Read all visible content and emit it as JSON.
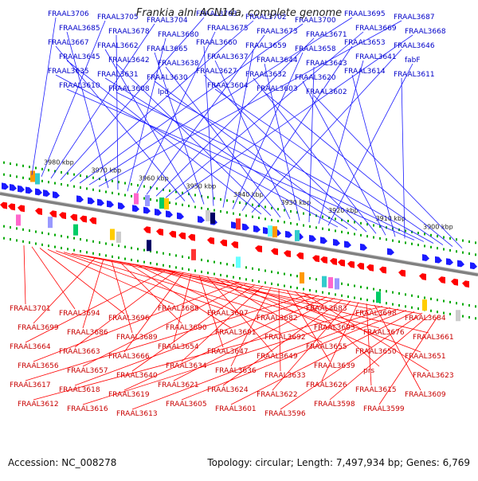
{
  "title": "Frankia alni ACN14a, complete genome",
  "footer": {
    "accession": "Accession: NC_008278",
    "summary": "Topology: circular; Length: 7,497,934 bp; Genes: 6,769"
  },
  "colors": {
    "forward": "#1a1aff",
    "reverse": "#ff0000",
    "backbone": "#808080",
    "tick": "#00aa00",
    "forward_label": "#0000c8",
    "reverse_label": "#c80000"
  },
  "scale_ticks": [
    "3980 kbp",
    "3970 kbp",
    "3960 kbp",
    "3950 kbp",
    "3940 kbp",
    "3930 kbp",
    "3920 kbp",
    "3910 kbp",
    "3900 kbp"
  ],
  "forward_labels": [
    "FRAAL3706",
    "FRAAL3705",
    "FRAAL3704",
    "FRAAL3703",
    "FRAAL3702",
    "FRAAL3700",
    "FRAAL3695",
    "FRAAL3687",
    "FRAAL3685",
    "FRAAL3678",
    "FRAAL3680",
    "FRAAL3675",
    "FRAAL3673",
    "FRAAL3671",
    "FRAAL3669",
    "FRAAL3668",
    "FRAAL3667",
    "FRAAL3662",
    "FRAAL3665",
    "FRAAL3660",
    "FRAAL3659",
    "FRAAL3658",
    "FRAAL3653",
    "FRAAL3646",
    "FRAAL3645",
    "FRAAL3642",
    "FRAAL3638",
    "FRAAL3637",
    "FRAAL3644",
    "FRAAL3643",
    "FRAAL3641",
    "fabF",
    "FRAAL3635",
    "FRAAL3631",
    "FRAAL3630",
    "FRAAL3627",
    "FRAAL3632",
    "FRAAL3620",
    "FRAAL3614",
    "FRAAL3611",
    "FRAAL3610",
    "FRAAL3608",
    "lpd",
    "FRAAL3604",
    "FRAAL3603",
    "FRAAL3602"
  ],
  "reverse_labels": [
    "FRAAL3701",
    "FRAAL3694",
    "FRAAL3696",
    "FRAAL3688",
    "FRAAL3697",
    "FRAAL3682",
    "FRAAL3683",
    "FRAAL3698",
    "FRAAL3684",
    "FRAAL3699",
    "FRAAL3686",
    "FRAAL3689",
    "FRAAL3690",
    "FRAAL3691",
    "FRAAL3692",
    "FRAAL3693",
    "FRAAL3676",
    "FRAAL3661",
    "FRAAL3664",
    "FRAAL3663",
    "FRAAL3666",
    "FRAAL3654",
    "FRAAL3647",
    "FRAAL3649",
    "FRAAL3655",
    "FRAAL3650",
    "FRAAL3651",
    "FRAAL3656",
    "FRAAL3657",
    "FRAAL3640",
    "FRAAL3634",
    "FRAAL3636",
    "FRAAL3633",
    "FRAAL3639",
    "prs",
    "FRAAL3623",
    "FRAAL3617",
    "FRAAL3618",
    "FRAAL3619",
    "FRAAL3621",
    "FRAAL3624",
    "FRAAL3622",
    "FRAAL3626",
    "FRAAL3615",
    "FRAAL3609",
    "FRAAL3612",
    "FRAAL3616",
    "FRAAL3613",
    "FRAAL3605",
    "FRAAL3601",
    "FRAAL3596",
    "FRAAL3598",
    "FRAAL3599"
  ]
}
